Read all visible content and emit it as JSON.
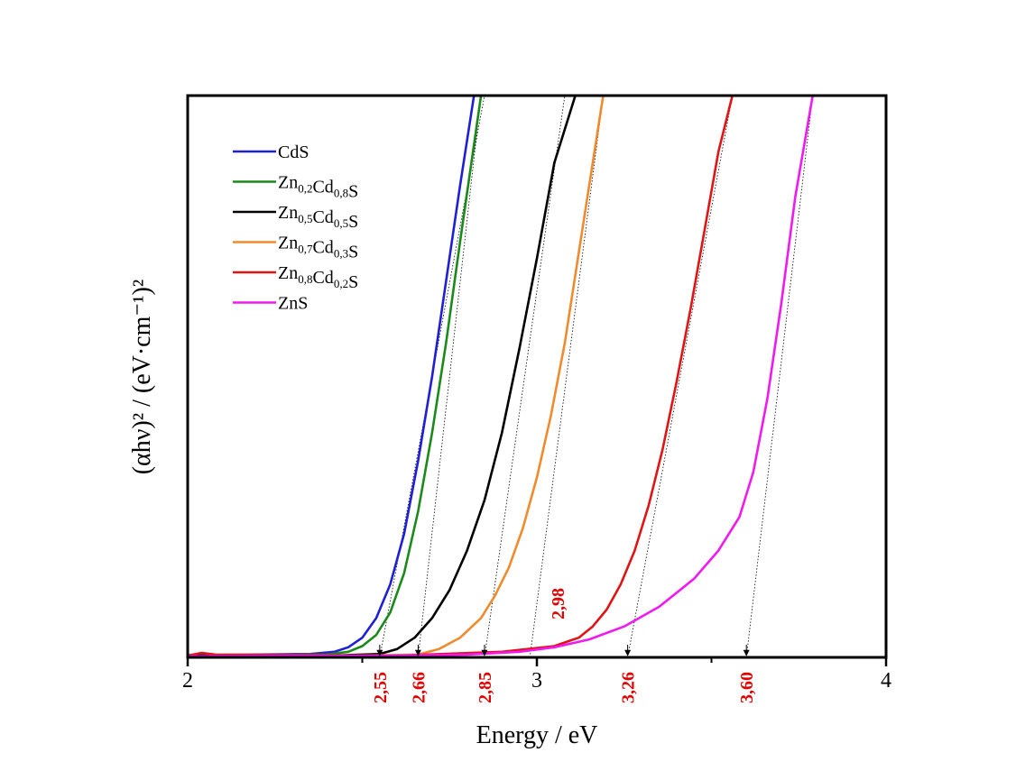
{
  "chart_data": {
    "type": "line",
    "xlabel": "Energy / eV",
    "ylabel": "(αhν)² / (eV·cm⁻¹)²",
    "xlim": [
      2,
      4
    ],
    "ylim": [
      0,
      100
    ],
    "x_ticks": [
      {
        "value": 2,
        "label": "2"
      },
      {
        "value": 3,
        "label": "3"
      },
      {
        "value": 4,
        "label": "4"
      }
    ],
    "minor_ticks": [
      2.5,
      3.5
    ],
    "grid": false,
    "legend_position": "top-left",
    "series": [
      {
        "name": "CdS",
        "name_parts": [
          [
            "Cd",
            "n"
          ],
          [
            "S",
            "n"
          ]
        ],
        "color": "#1f1fd6",
        "x": [
          2.0,
          2.2,
          2.35,
          2.42,
          2.46,
          2.5,
          2.54,
          2.58,
          2.62,
          2.66,
          2.7,
          2.74,
          2.78,
          2.82
        ],
        "y": [
          0.4,
          0.5,
          0.6,
          1.0,
          1.8,
          3.5,
          7,
          13,
          22,
          35,
          50,
          67,
          84,
          100
        ]
      },
      {
        "name": "Zn0,2Cd0,8S",
        "name_parts": [
          [
            "Zn",
            "n"
          ],
          [
            "0,2",
            "s"
          ],
          [
            "Cd",
            "n"
          ],
          [
            "0,8",
            "s"
          ],
          [
            "S",
            "n"
          ]
        ],
        "color": "#1a8a1a",
        "x": [
          2.0,
          2.25,
          2.4,
          2.46,
          2.5,
          2.54,
          2.58,
          2.62,
          2.66,
          2.7,
          2.74,
          2.78,
          2.84
        ],
        "y": [
          0.3,
          0.4,
          0.5,
          1.0,
          2.0,
          4.0,
          8,
          15,
          26,
          40,
          56,
          74,
          100
        ]
      },
      {
        "name": "Zn0,5Cd0,5S",
        "name_parts": [
          [
            "Zn",
            "n"
          ],
          [
            "0,5",
            "s"
          ],
          [
            "Cd",
            "n"
          ],
          [
            "0,5",
            "s"
          ],
          [
            "S",
            "n"
          ]
        ],
        "color": "#000000",
        "x": [
          2.0,
          2.4,
          2.55,
          2.6,
          2.65,
          2.7,
          2.75,
          2.8,
          2.85,
          2.9,
          2.95,
          3.0,
          3.05,
          3.11
        ],
        "y": [
          0.3,
          0.3,
          0.6,
          1.5,
          3.5,
          7,
          12,
          19,
          28,
          40,
          55,
          71,
          88,
          100
        ]
      },
      {
        "name": "Zn0,7Cd0,3S",
        "name_parts": [
          [
            "Zn",
            "n"
          ],
          [
            "0,7",
            "s"
          ],
          [
            "Cd",
            "n"
          ],
          [
            "0,3",
            "s"
          ],
          [
            "S",
            "n"
          ]
        ],
        "color": "#f08a2c",
        "x": [
          2.0,
          2.5,
          2.66,
          2.72,
          2.78,
          2.84,
          2.88,
          2.92,
          2.96,
          3.0,
          3.04,
          3.08,
          3.12,
          3.15,
          3.19
        ],
        "y": [
          0.2,
          0.3,
          0.5,
          1.5,
          3.5,
          7,
          11,
          16,
          23,
          32,
          43,
          56,
          72,
          84,
          100
        ]
      },
      {
        "name": "Zn0,8Cd0,2S",
        "name_parts": [
          [
            "Zn",
            "n"
          ],
          [
            "0,8",
            "s"
          ],
          [
            "Cd",
            "n"
          ],
          [
            "0,2",
            "s"
          ],
          [
            "S",
            "n"
          ]
        ],
        "color": "#e01414",
        "x": [
          2.0,
          2.04,
          2.08,
          2.6,
          2.9,
          3.05,
          3.12,
          3.16,
          3.2,
          3.24,
          3.28,
          3.32,
          3.36,
          3.4,
          3.44,
          3.48,
          3.52,
          3.56
        ],
        "y": [
          0.3,
          0.8,
          0.5,
          0.3,
          1.0,
          2.0,
          3.5,
          5.5,
          8.5,
          13,
          19,
          27,
          37,
          49,
          62,
          76,
          90,
          100
        ]
      },
      {
        "name": "ZnS",
        "name_parts": [
          [
            "ZnS",
            "n"
          ]
        ],
        "color": "#f01af0",
        "x": [
          2.0,
          2.6,
          2.8,
          2.95,
          3.05,
          3.15,
          3.25,
          3.35,
          3.45,
          3.52,
          3.58,
          3.62,
          3.66,
          3.7,
          3.74,
          3.79
        ],
        "y": [
          0.2,
          0.3,
          0.5,
          1.0,
          1.8,
          3.2,
          5.5,
          9,
          14,
          19,
          25,
          33,
          46,
          63,
          82,
          100
        ]
      }
    ],
    "extrapolation_lines": [
      {
        "x1": 2.55,
        "y1": 0,
        "x2": 2.85,
        "y2": 100
      },
      {
        "x1": 2.66,
        "y1": 0,
        "x2": 2.84,
        "y2": 100
      },
      {
        "x1": 2.85,
        "y1": 0,
        "x2": 3.08,
        "y2": 100
      },
      {
        "x1": 2.98,
        "y1": 0,
        "x2": 3.19,
        "y2": 100
      },
      {
        "x1": 3.26,
        "y1": 0,
        "x2": 3.56,
        "y2": 100
      },
      {
        "x1": 3.6,
        "y1": 0,
        "x2": 3.79,
        "y2": 100
      }
    ],
    "annotations": [
      {
        "label": "2,55",
        "x": 2.55,
        "position": "below-axis"
      },
      {
        "label": "2,66",
        "x": 2.66,
        "position": "below-axis"
      },
      {
        "label": "2,85",
        "x": 2.85,
        "position": "below-axis"
      },
      {
        "label": "2,98",
        "x": 3.06,
        "position": "inside-plot"
      },
      {
        "label": "3,26",
        "x": 3.26,
        "position": "below-axis"
      },
      {
        "label": "3,60",
        "x": 3.6,
        "position": "below-axis"
      }
    ]
  }
}
